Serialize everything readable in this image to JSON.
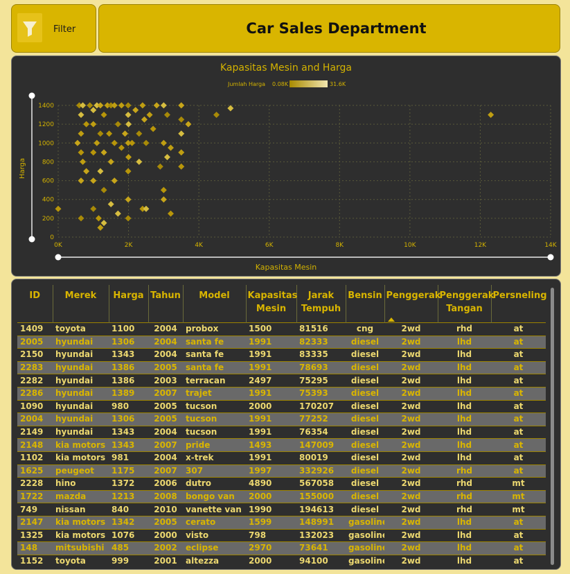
{
  "filter": {
    "label": "Filter",
    "icon": "funnel-icon"
  },
  "header": {
    "title": "Car Sales Department"
  },
  "colors": {
    "accent": "#d9b500",
    "panel": "#2e2e2e",
    "background": "#f3e49a"
  },
  "chart": {
    "title": "Kapasitas Mesin and Harga",
    "legend": {
      "label": "Jumlah Harga",
      "min": "0.08K",
      "max": "31.6K"
    }
  },
  "chart_data": {
    "type": "scatter",
    "title": "Kapasitas Mesin and Harga",
    "xlabel": "Kapasitas Mesin",
    "ylabel": "Harga",
    "xlim": [
      0,
      14000
    ],
    "ylim": [
      0,
      1400
    ],
    "x_ticks": [
      "0K",
      "2K",
      "4K",
      "6K",
      "8K",
      "10K",
      "12K",
      "14K"
    ],
    "y_ticks": [
      "0",
      "200",
      "400",
      "600",
      "800",
      "1000",
      "1200",
      "1400"
    ],
    "grid": true,
    "points": [
      [
        0,
        300
      ],
      [
        550,
        1000
      ],
      [
        600,
        1400
      ],
      [
        650,
        1300
      ],
      [
        650,
        1100
      ],
      [
        650,
        900
      ],
      [
        650,
        600
      ],
      [
        650,
        200
      ],
      [
        700,
        1400
      ],
      [
        700,
        800
      ],
      [
        800,
        1200
      ],
      [
        800,
        700
      ],
      [
        900,
        1400
      ],
      [
        1000,
        1350
      ],
      [
        1000,
        1200
      ],
      [
        1000,
        900
      ],
      [
        1000,
        600
      ],
      [
        1000,
        300
      ],
      [
        1100,
        1400
      ],
      [
        1100,
        1000
      ],
      [
        1150,
        200
      ],
      [
        1200,
        1400
      ],
      [
        1200,
        1100
      ],
      [
        1200,
        700
      ],
      [
        1200,
        100
      ],
      [
        1300,
        1300
      ],
      [
        1300,
        900
      ],
      [
        1300,
        500
      ],
      [
        1300,
        150
      ],
      [
        1400,
        1400
      ],
      [
        1450,
        1100
      ],
      [
        1500,
        800
      ],
      [
        1500,
        1400
      ],
      [
        1500,
        350
      ],
      [
        1600,
        1400
      ],
      [
        1600,
        1000
      ],
      [
        1600,
        600
      ],
      [
        1700,
        1200
      ],
      [
        1700,
        250
      ],
      [
        1800,
        1400
      ],
      [
        1800,
        950
      ],
      [
        1900,
        1100
      ],
      [
        1990,
        1400
      ],
      [
        1990,
        1300
      ],
      [
        1990,
        1000
      ],
      [
        1990,
        700
      ],
      [
        1990,
        400
      ],
      [
        1990,
        200
      ],
      [
        2000,
        1200
      ],
      [
        2000,
        850
      ],
      [
        2100,
        1000
      ],
      [
        2200,
        1350
      ],
      [
        2300,
        1100
      ],
      [
        2300,
        800
      ],
      [
        2400,
        1400
      ],
      [
        2400,
        300
      ],
      [
        2450,
        1250
      ],
      [
        2500,
        1000
      ],
      [
        2500,
        300
      ],
      [
        2600,
        1300
      ],
      [
        2700,
        1150
      ],
      [
        2800,
        1400
      ],
      [
        2900,
        750
      ],
      [
        3000,
        1400
      ],
      [
        3000,
        1000
      ],
      [
        3000,
        500
      ],
      [
        3000,
        400
      ],
      [
        3100,
        1300
      ],
      [
        3100,
        850
      ],
      [
        3200,
        950
      ],
      [
        3200,
        250
      ],
      [
        3500,
        1400
      ],
      [
        3500,
        1250
      ],
      [
        3500,
        1100
      ],
      [
        3500,
        900
      ],
      [
        3500,
        750
      ],
      [
        3700,
        1200
      ],
      [
        4500,
        1300
      ],
      [
        4900,
        1370
      ],
      [
        12300,
        1300
      ]
    ]
  },
  "table": {
    "columns": [
      "ID",
      "Merek",
      "Harga",
      "Tahun",
      "Model",
      "Kapasitas Mesin",
      "Jarak Tempuh",
      "Bensin",
      "Penggerak",
      "Penggerak Tangan",
      "Persneling"
    ],
    "rows": [
      [
        "1409",
        "toyota",
        "1100",
        "2004",
        "probox",
        "1500",
        "81516",
        "cng",
        "2wd",
        "rhd",
        "at"
      ],
      [
        "2005",
        "hyundai",
        "1306",
        "2004",
        "santa fe",
        "1991",
        "82333",
        "diesel",
        "2wd",
        "lhd",
        "at"
      ],
      [
        "2150",
        "hyundai",
        "1343",
        "2004",
        "santa fe",
        "1991",
        "83335",
        "diesel",
        "2wd",
        "lhd",
        "at"
      ],
      [
        "2283",
        "hyundai",
        "1386",
        "2005",
        "santa fe",
        "1991",
        "78693",
        "diesel",
        "2wd",
        "lhd",
        "at"
      ],
      [
        "2282",
        "hyundai",
        "1386",
        "2003",
        "terracan",
        "2497",
        "75295",
        "diesel",
        "2wd",
        "lhd",
        "at"
      ],
      [
        "2286",
        "hyundai",
        "1389",
        "2007",
        "trajet",
        "1991",
        "75393",
        "diesel",
        "2wd",
        "lhd",
        "at"
      ],
      [
        "1090",
        "hyundai",
        "980",
        "2005",
        "tucson",
        "2000",
        "170207",
        "diesel",
        "2wd",
        "lhd",
        "at"
      ],
      [
        "2004",
        "hyundai",
        "1306",
        "2005",
        "tucson",
        "1991",
        "77252",
        "diesel",
        "2wd",
        "lhd",
        "at"
      ],
      [
        "2149",
        "hyundai",
        "1343",
        "2004",
        "tucson",
        "1991",
        "76354",
        "diesel",
        "2wd",
        "lhd",
        "at"
      ],
      [
        "2148",
        "kia motors",
        "1343",
        "2007",
        "pride",
        "1493",
        "147009",
        "diesel",
        "2wd",
        "lhd",
        "at"
      ],
      [
        "1102",
        "kia motors",
        "981",
        "2004",
        "x-trek",
        "1991",
        "80019",
        "diesel",
        "2wd",
        "lhd",
        "at"
      ],
      [
        "1625",
        "peugeot",
        "1175",
        "2007",
        "307",
        "1997",
        "332926",
        "diesel",
        "2wd",
        "rhd",
        "at"
      ],
      [
        "2228",
        "hino",
        "1372",
        "2006",
        "dutro",
        "4890",
        "567058",
        "diesel",
        "2wd",
        "rhd",
        "mt"
      ],
      [
        "1722",
        "mazda",
        "1213",
        "2008",
        "bongo van",
        "2000",
        "155000",
        "diesel",
        "2wd",
        "rhd",
        "mt"
      ],
      [
        "749",
        "nissan",
        "840",
        "2010",
        "vanette van",
        "1990",
        "194613",
        "diesel",
        "2wd",
        "rhd",
        "mt"
      ],
      [
        "2147",
        "kia motors",
        "1342",
        "2005",
        "cerato",
        "1599",
        "148991",
        "gasoline",
        "2wd",
        "lhd",
        "at"
      ],
      [
        "1325",
        "kia motors",
        "1076",
        "2000",
        "visto",
        "798",
        "132023",
        "gasoline",
        "2wd",
        "lhd",
        "at"
      ],
      [
        "148",
        "mitsubishi",
        "485",
        "2002",
        "eclipse",
        "2970",
        "73641",
        "gasoline",
        "2wd",
        "lhd",
        "at"
      ],
      [
        "1152",
        "toyota",
        "999",
        "2001",
        "altezza",
        "2000",
        "94100",
        "gasoline",
        "2wd",
        "lhd",
        "at"
      ]
    ]
  }
}
